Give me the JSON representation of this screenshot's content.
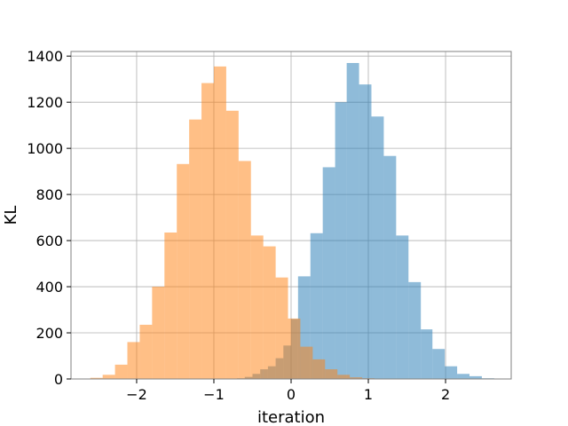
{
  "chart_data": {
    "type": "bar",
    "subtype": "histogram",
    "title": "",
    "xlabel": "iteration",
    "ylabel": "KL",
    "xlim": [
      -2.85,
      2.85
    ],
    "ylim": [
      0,
      1400
    ],
    "x_ticks": [
      -2,
      -1,
      0,
      1,
      2
    ],
    "x_tick_labels": [
      "−2",
      "−1",
      "0",
      "1",
      "2"
    ],
    "y_ticks": [
      0,
      200,
      400,
      600,
      800,
      1000,
      1200,
      1400
    ],
    "y_tick_labels": [
      "0",
      "200",
      "400",
      "600",
      "800",
      "1000",
      "1200",
      "1400"
    ],
    "grid": true,
    "legend": "none",
    "series": [
      {
        "color": "#1f77b4",
        "opacity": 0.5,
        "bins": [
          [
            -0.7,
            -0.6,
            3
          ],
          [
            -0.6,
            -0.5,
            9
          ],
          [
            -0.5,
            -0.4,
            22
          ],
          [
            -0.4,
            -0.3,
            42
          ],
          [
            -0.3,
            -0.2,
            55
          ],
          [
            -0.2,
            -0.1,
            90
          ],
          [
            -0.1,
            0.0,
            145
          ],
          [
            0.0,
            0.09,
            260
          ],
          [
            0.09,
            0.25,
            445
          ],
          [
            0.25,
            0.41,
            632
          ],
          [
            0.41,
            0.57,
            918
          ],
          [
            0.57,
            0.72,
            1200
          ],
          [
            0.72,
            0.88,
            1370
          ],
          [
            0.88,
            1.04,
            1277
          ],
          [
            1.04,
            1.2,
            1138
          ],
          [
            1.2,
            1.36,
            967
          ],
          [
            1.36,
            1.52,
            622
          ],
          [
            1.52,
            1.68,
            420
          ],
          [
            1.68,
            1.83,
            215
          ],
          [
            1.83,
            1.99,
            130
          ],
          [
            1.99,
            2.15,
            55
          ],
          [
            2.15,
            2.31,
            22
          ],
          [
            2.31,
            2.47,
            12
          ],
          [
            2.47,
            2.63,
            3
          ]
        ]
      },
      {
        "color": "#ff7f0e",
        "opacity": 0.5,
        "bins": [
          [
            -2.6,
            -2.44,
            5
          ],
          [
            -2.44,
            -2.28,
            18
          ],
          [
            -2.28,
            -2.12,
            62
          ],
          [
            -2.12,
            -1.96,
            160
          ],
          [
            -1.96,
            -1.8,
            235
          ],
          [
            -1.8,
            -1.64,
            400
          ],
          [
            -1.64,
            -1.48,
            635
          ],
          [
            -1.48,
            -1.32,
            932
          ],
          [
            -1.32,
            -1.16,
            1125
          ],
          [
            -1.16,
            -1.0,
            1283
          ],
          [
            -1.0,
            -0.84,
            1355
          ],
          [
            -0.84,
            -0.68,
            1163
          ],
          [
            -0.68,
            -0.52,
            945
          ],
          [
            -0.52,
            -0.36,
            622
          ],
          [
            -0.36,
            -0.2,
            575
          ],
          [
            -0.2,
            -0.04,
            440
          ],
          [
            -0.04,
            0.12,
            262
          ],
          [
            0.12,
            0.28,
            140
          ],
          [
            0.28,
            0.44,
            85
          ],
          [
            0.44,
            0.6,
            42
          ],
          [
            0.6,
            0.76,
            18
          ],
          [
            0.76,
            0.92,
            7
          ],
          [
            0.92,
            1.08,
            3
          ]
        ]
      }
    ]
  }
}
